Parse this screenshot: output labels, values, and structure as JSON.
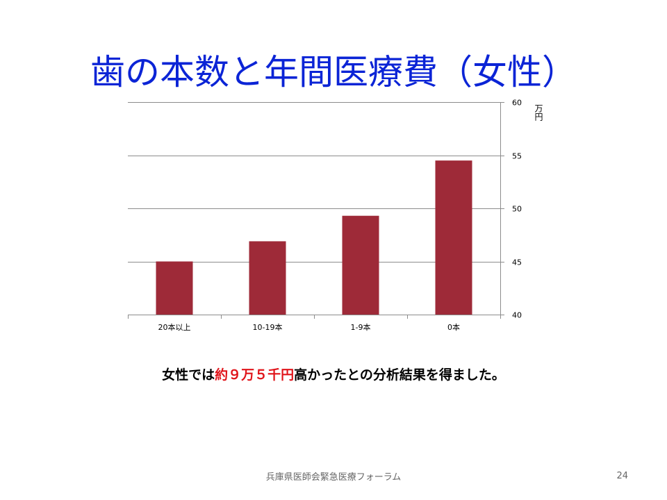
{
  "slide": {
    "title": "歯の本数と年間医療費（女性）",
    "summary_prefix": "女性では",
    "summary_highlight": "約９万５千円",
    "summary_suffix": "高かったとの分析結果を得ました。",
    "footer": "兵庫県医師会緊急医療フォーラム",
    "page_number": "24"
  },
  "chart_data": {
    "type": "bar",
    "categories": [
      "20本以上",
      "10-19本",
      "1-9本",
      "0本"
    ],
    "values": [
      45.0,
      46.9,
      49.3,
      54.5
    ],
    "ylabel": "万円",
    "ylim": [
      40,
      60
    ],
    "yticks": [
      "40",
      "45",
      "50",
      "55",
      "60"
    ],
    "y_axis_position": "right",
    "grid": true,
    "legend": "none",
    "bar_color": "#9e2a38",
    "grid_color": "#8c8c8c"
  }
}
